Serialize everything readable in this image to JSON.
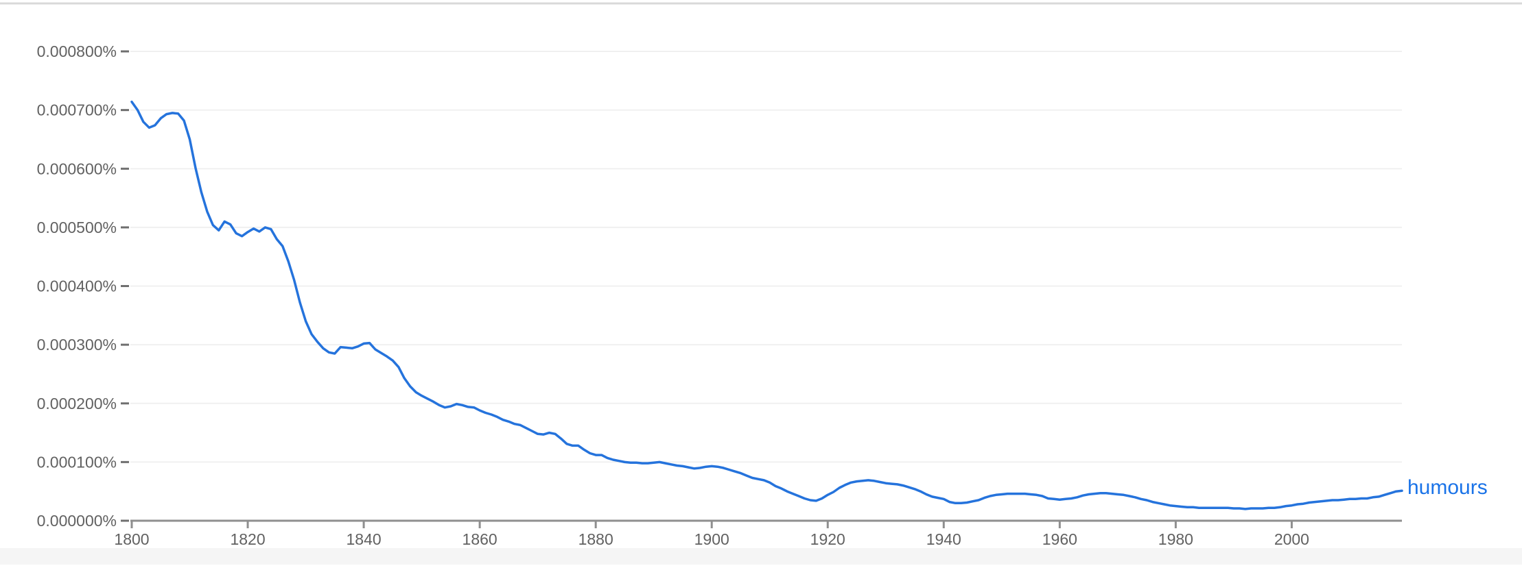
{
  "page": {
    "background": "#ffffff"
  },
  "style": {
    "grid_color": "#f0f0f0",
    "axis_color": "#8f8f8f",
    "tick_color": "#8f8f8f",
    "y_dash_color": "#6f6f6f",
    "tick_label_color": "#616161",
    "top_border_color": "#d9d9d9",
    "bottom_band_color": "#f5f5f5"
  },
  "chart_data": {
    "type": "line",
    "title": "",
    "xlabel": "",
    "ylabel": "",
    "grid": true,
    "legend_position": "end-of-line",
    "x_axis": {
      "range": [
        1800,
        2019
      ],
      "tick_values": [
        1800,
        1820,
        1840,
        1860,
        1880,
        1900,
        1920,
        1940,
        1960,
        1980,
        2000
      ],
      "tick_labels": [
        "1800",
        "1820",
        "1840",
        "1860",
        "1880",
        "1900",
        "1920",
        "1940",
        "1960",
        "1980",
        "2000"
      ]
    },
    "y_axis": {
      "range": [
        0,
        0.0008
      ],
      "unit": "%",
      "tick_values": [
        0.0008,
        0.0007,
        0.0006,
        0.0005,
        0.0004,
        0.0003,
        0.0002,
        0.0001,
        0
      ],
      "tick_labels": [
        "0.000800%",
        "0.000700%",
        "0.000600%",
        "0.000500%",
        "0.000400%",
        "0.000300%",
        "0.000200%",
        "0.000100%",
        "0.000000%"
      ]
    },
    "series": [
      {
        "name": "humours",
        "color": "#2573dc",
        "label_color": "#1a73e8",
        "start_year": 1800,
        "end_year": 2019,
        "values_percent": [
          0.000714,
          0.0007,
          0.00068,
          0.00067,
          0.000674,
          0.000686,
          0.000693,
          0.000695,
          0.000694,
          0.000682,
          0.00065,
          0.000601,
          0.00056,
          0.000527,
          0.000504,
          0.000495,
          0.00051,
          0.000505,
          0.00049,
          0.000485,
          0.000492,
          0.000498,
          0.000493,
          0.0005,
          0.000497,
          0.00048,
          0.000468,
          0.000442,
          0.00041,
          0.000372,
          0.00034,
          0.000318,
          0.000305,
          0.000294,
          0.000287,
          0.000285,
          0.000296,
          0.000295,
          0.000294,
          0.000297,
          0.000302,
          0.000303,
          0.000292,
          0.000286,
          0.00028,
          0.000273,
          0.000262,
          0.000243,
          0.000229,
          0.000219,
          0.000213,
          0.000208,
          0.000203,
          0.000197,
          0.000193,
          0.000195,
          0.000199,
          0.000197,
          0.000194,
          0.000193,
          0.000188,
          0.000184,
          0.000181,
          0.000177,
          0.000172,
          0.000169,
          0.000165,
          0.000163,
          0.000158,
          0.000153,
          0.000148,
          0.000147,
          0.00015,
          0.000148,
          0.00014,
          0.000131,
          0.000128,
          0.000128,
          0.000121,
          0.000115,
          0.000112,
          0.000112,
          0.000107,
          0.000104,
          0.000102,
          0.0001,
          9.9e-05,
          9.9e-05,
          9.8e-05,
          9.8e-05,
          9.9e-05,
          0.0001,
          9.8e-05,
          9.6e-05,
          9.4e-05,
          9.3e-05,
          9.1e-05,
          8.9e-05,
          9e-05,
          9.2e-05,
          9.3e-05,
          9.2e-05,
          9e-05,
          8.7e-05,
          8.4e-05,
          8.1e-05,
          7.7e-05,
          7.3e-05,
          7.1e-05,
          6.9e-05,
          6.5e-05,
          5.9e-05,
          5.5e-05,
          5e-05,
          4.6e-05,
          4.2e-05,
          3.8e-05,
          3.5e-05,
          3.4e-05,
          3.8e-05,
          4.4e-05,
          4.9e-05,
          5.6e-05,
          6.1e-05,
          6.5e-05,
          6.7e-05,
          6.8e-05,
          6.9e-05,
          6.8e-05,
          6.6e-05,
          6.4e-05,
          6.3e-05,
          6.2e-05,
          6e-05,
          5.7e-05,
          5.4e-05,
          5e-05,
          4.5e-05,
          4.1e-05,
          3.9e-05,
          3.7e-05,
          3.2e-05,
          3e-05,
          3e-05,
          3.1e-05,
          3.3e-05,
          3.5e-05,
          3.9e-05,
          4.2e-05,
          4.4e-05,
          4.5e-05,
          4.6e-05,
          4.6e-05,
          4.6e-05,
          4.6e-05,
          4.5e-05,
          4.4e-05,
          4.2e-05,
          3.8e-05,
          3.7e-05,
          3.6e-05,
          3.7e-05,
          3.8e-05,
          4e-05,
          4.3e-05,
          4.5e-05,
          4.6e-05,
          4.7e-05,
          4.7e-05,
          4.6e-05,
          4.5e-05,
          4.4e-05,
          4.2e-05,
          4e-05,
          3.7e-05,
          3.5e-05,
          3.2e-05,
          3e-05,
          2.8e-05,
          2.6e-05,
          2.5e-05,
          2.4e-05,
          2.3e-05,
          2.3e-05,
          2.2e-05,
          2.2e-05,
          2.2e-05,
          2.2e-05,
          2.2e-05,
          2.2e-05,
          2.1e-05,
          2.1e-05,
          2e-05,
          2.1e-05,
          2.1e-05,
          2.1e-05,
          2.2e-05,
          2.2e-05,
          2.3e-05,
          2.5e-05,
          2.6e-05,
          2.8e-05,
          2.9e-05,
          3.1e-05,
          3.2e-05,
          3.3e-05,
          3.4e-05,
          3.5e-05,
          3.5e-05,
          3.6e-05,
          3.7e-05,
          3.7e-05,
          3.8e-05,
          3.8e-05,
          4e-05,
          4.1e-05,
          4.4e-05,
          4.7e-05,
          5e-05,
          5.1e-05
        ]
      }
    ]
  }
}
